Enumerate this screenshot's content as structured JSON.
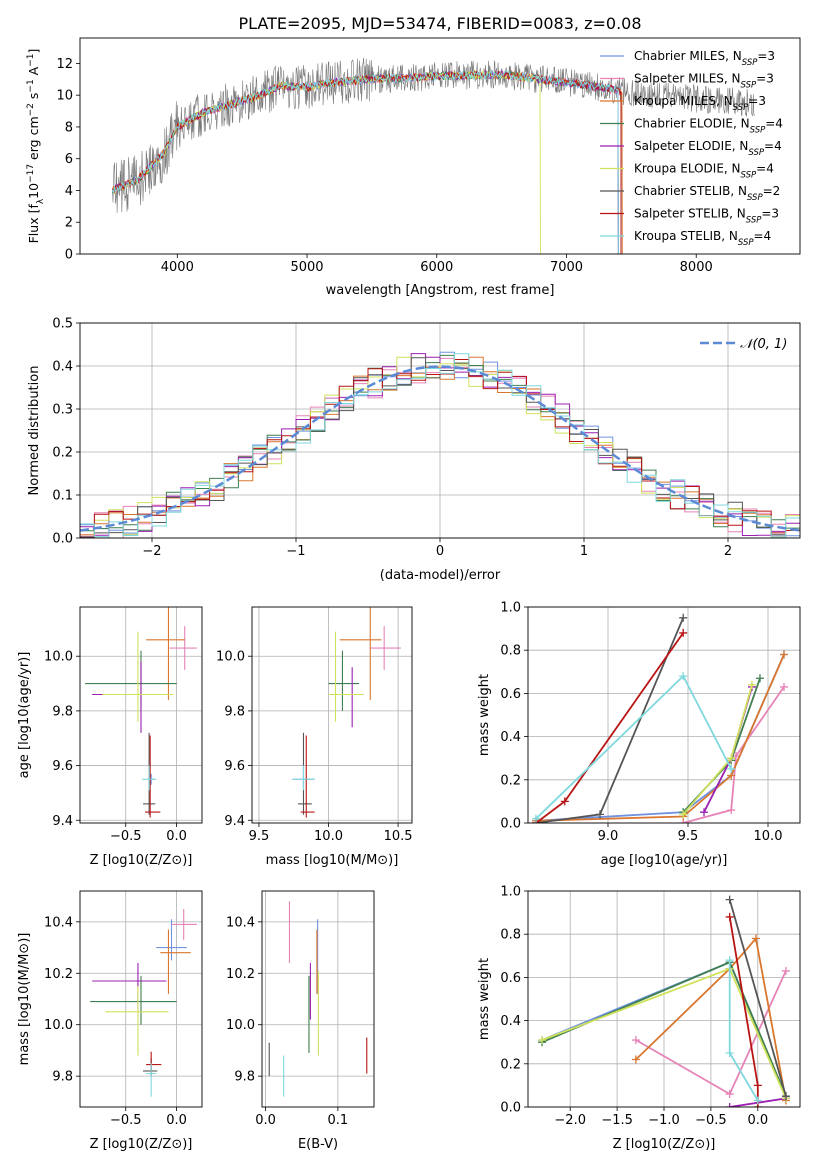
{
  "figure": {
    "title": "PLATE=2095, MJD=53474, FIBERID=0083, z=0.08"
  },
  "colors": {
    "Chabrier MILES": "#6f93e0",
    "Salpeter MILES": "#e683b7",
    "Kroupa MILES": "#d9772e",
    "Chabrier ELODIE": "#3f7f4f",
    "Salpeter ELODIE": "#9b1fb0",
    "Kroupa ELODIE": "#d0e25c",
    "Chabrier STELIB": "#555555",
    "Salpeter STELIB": "#b81414",
    "Kroupa STELIB": "#7fd8dd",
    "gaussian": "#5b8bd6"
  },
  "chart_data": [
    {
      "id": "spectrum",
      "type": "line",
      "xlabel": "wavelength [Angstrom, rest frame]",
      "ylabel": "Flux [f_λ 10^-17 erg cm^-2 s^-1 A^-1]",
      "xlim": [
        3250,
        8800
      ],
      "ylim": [
        0,
        13.6
      ],
      "xticks": [
        4000,
        5000,
        6000,
        7000,
        8000
      ],
      "yticks": [
        0,
        2,
        4,
        6,
        8,
        10,
        12
      ],
      "legend_position": "right",
      "legend": [
        {
          "name": "Chabrier MILES",
          "nssp": "3"
        },
        {
          "name": "Salpeter MILES",
          "nssp": "3"
        },
        {
          "name": "Kroupa MILES",
          "nssp": "3"
        },
        {
          "name": "Chabrier ELODIE",
          "nssp": "4"
        },
        {
          "name": "Salpeter ELODIE",
          "nssp": "4"
        },
        {
          "name": "Kroupa ELODIE",
          "nssp": "4"
        },
        {
          "name": "Chabrier STELIB",
          "nssp": "2"
        },
        {
          "name": "Salpeter STELIB",
          "nssp": "3"
        },
        {
          "name": "Kroupa STELIB",
          "nssp": "4"
        }
      ],
      "continuum": {
        "x": [
          3500,
          3700,
          3900,
          4000,
          4200,
          4400,
          4600,
          4800,
          5000,
          5200,
          5500,
          6000,
          6500,
          7000,
          7500,
          8000,
          8300,
          8500
        ],
        "y": [
          4.0,
          4.7,
          6.4,
          8.0,
          8.9,
          9.4,
          9.9,
          10.6,
          10.5,
          10.8,
          11.0,
          11.2,
          11.3,
          10.8,
          10.2,
          9.8,
          9.6,
          9.4
        ]
      },
      "data_range": [
        3500,
        8450
      ],
      "models_range": [
        3500,
        7400
      ]
    },
    {
      "id": "residuals",
      "type": "histogram",
      "xlabel": "(data-model)/error",
      "ylabel": "Normed distribution",
      "xlim": [
        -2.5,
        2.5
      ],
      "ylim": [
        0,
        0.5
      ],
      "xticks": [
        -2,
        -1,
        0,
        1,
        2
      ],
      "yticks": [
        0.0,
        0.1,
        0.2,
        0.3,
        0.4,
        0.5
      ],
      "legend_label": "𝒩(0, 1)",
      "legend_position": "top-right",
      "bin_width": 0.1,
      "bin_start": -2.5,
      "gaussian": {
        "mean": 0,
        "sigma": 1
      }
    },
    {
      "id": "age_vs_Z",
      "type": "errorbar",
      "xlabel": "Z [log10(Z/Z⊙)]",
      "ylabel": "age [log10(age/yr)]",
      "xlim": [
        -0.95,
        0.25
      ],
      "ylim": [
        9.39,
        10.18
      ],
      "xticks": [
        -0.5,
        0.0
      ],
      "yticks": [
        9.4,
        9.6,
        9.8,
        10.0
      ],
      "points": [
        {
          "model": "Chabrier MILES",
          "x": -0.25,
          "y": 9.55,
          "xerr": [
            0.03,
            0.03
          ],
          "yerr": [
            0.02,
            0.02
          ]
        },
        {
          "model": "Salpeter MILES",
          "x": 0.08,
          "y": 10.03,
          "xerr": [
            0.15,
            0.12
          ],
          "yerr": [
            0.08,
            0.08
          ]
        },
        {
          "model": "Kroupa MILES",
          "x": -0.08,
          "y": 10.06,
          "xerr": [
            0.22,
            0.16
          ],
          "yerr": [
            0.22,
            0.12
          ]
        },
        {
          "model": "Chabrier ELODIE",
          "x": -0.35,
          "y": 9.9,
          "xerr": [
            0.55,
            0.35
          ],
          "yerr": [
            0.1,
            0.12
          ]
        },
        {
          "model": "Salpeter ELODIE",
          "x": -0.35,
          "y": 9.86,
          "xerr": [
            0.48,
            0.3
          ],
          "yerr": [
            0.14,
            0.12
          ]
        },
        {
          "model": "Kroupa ELODIE",
          "x": -0.38,
          "y": 9.86,
          "xerr": [
            0.35,
            0.35
          ],
          "yerr": [
            0.1,
            0.23
          ]
        },
        {
          "model": "Chabrier STELIB",
          "x": -0.27,
          "y": 9.46,
          "xerr": [
            0.06,
            0.06
          ],
          "yerr": [
            0.04,
            0.26
          ]
        },
        {
          "model": "Salpeter STELIB",
          "x": -0.26,
          "y": 9.43,
          "xerr": [
            0.05,
            0.1
          ],
          "yerr": [
            0.02,
            0.28
          ]
        },
        {
          "model": "Kroupa STELIB",
          "x": -0.27,
          "y": 9.55,
          "xerr": [
            0.07,
            0.07
          ],
          "yerr": [
            0.04,
            0.05
          ]
        }
      ]
    },
    {
      "id": "age_vs_mass",
      "type": "errorbar",
      "xlabel": "mass [log10(M/M⊙)]",
      "ylabel": "",
      "xlim": [
        9.45,
        10.6
      ],
      "ylim": [
        9.39,
        10.18
      ],
      "xticks": [
        9.5,
        10.0,
        10.5
      ],
      "yticks": [
        9.4,
        9.6,
        9.8,
        10.0
      ],
      "points": [
        {
          "model": "Chabrier MILES",
          "x": 9.82,
          "y": 9.55,
          "xerr": [
            0.08,
            0.08
          ],
          "yerr": [
            0.02,
            0.02
          ]
        },
        {
          "model": "Salpeter MILES",
          "x": 10.4,
          "y": 10.03,
          "xerr": [
            0.1,
            0.12
          ],
          "yerr": [
            0.08,
            0.08
          ]
        },
        {
          "model": "Kroupa MILES",
          "x": 10.3,
          "y": 10.06,
          "xerr": [
            0.22,
            0.08
          ],
          "yerr": [
            0.22,
            0.12
          ]
        },
        {
          "model": "Chabrier ELODIE",
          "x": 10.1,
          "y": 9.9,
          "xerr": [
            0.1,
            0.12
          ],
          "yerr": [
            0.1,
            0.12
          ]
        },
        {
          "model": "Salpeter ELODIE",
          "x": 10.17,
          "y": 9.86,
          "xerr": [
            0.08,
            0.08
          ],
          "yerr": [
            0.12,
            0.1
          ]
        },
        {
          "model": "Kroupa ELODIE",
          "x": 10.05,
          "y": 9.86,
          "xerr": [
            0.05,
            0.2
          ],
          "yerr": [
            0.1,
            0.23
          ]
        },
        {
          "model": "Chabrier STELIB",
          "x": 9.82,
          "y": 9.46,
          "xerr": [
            0.04,
            0.06
          ],
          "yerr": [
            0.04,
            0.26
          ]
        },
        {
          "model": "Salpeter STELIB",
          "x": 9.84,
          "y": 9.43,
          "xerr": [
            0.04,
            0.06
          ],
          "yerr": [
            0.02,
            0.28
          ]
        },
        {
          "model": "Kroupa STELIB",
          "x": 9.82,
          "y": 9.55,
          "xerr": [
            0.08,
            0.08
          ],
          "yerr": [
            0.04,
            0.05
          ]
        }
      ]
    },
    {
      "id": "weight_vs_age",
      "type": "line",
      "xlabel": "age [log10(age/yr)]",
      "ylabel": "mass weight",
      "xlim": [
        8.5,
        10.2
      ],
      "ylim": [
        0,
        1.0
      ],
      "xticks": [
        9.0,
        9.5,
        10.0
      ],
      "yticks": [
        0.0,
        0.2,
        0.4,
        0.6,
        0.8,
        1.0
      ],
      "series": [
        {
          "model": "Chabrier MILES",
          "x": [
            8.55,
            9.47,
            9.77,
            10.1
          ],
          "y": [
            0.01,
            0.05,
            0.22,
            0.78
          ]
        },
        {
          "model": "Salpeter MILES",
          "x": [
            9.47,
            9.77,
            9.8,
            10.1
          ],
          "y": [
            0.0,
            0.06,
            0.31,
            0.63
          ]
        },
        {
          "model": "Kroupa MILES",
          "x": [
            8.55,
            9.47,
            9.77,
            10.1
          ],
          "y": [
            0.01,
            0.03,
            0.22,
            0.78
          ]
        },
        {
          "model": "Chabrier ELODIE",
          "x": [
            9.47,
            9.77,
            9.95
          ],
          "y": [
            0.05,
            0.29,
            0.67
          ]
        },
        {
          "model": "Salpeter ELODIE",
          "x": [
            9.6,
            9.77,
            9.9
          ],
          "y": [
            0.05,
            0.3,
            0.63
          ]
        },
        {
          "model": "Kroupa ELODIE",
          "x": [
            9.47,
            9.77,
            9.9
          ],
          "y": [
            0.04,
            0.3,
            0.64
          ]
        },
        {
          "model": "Chabrier STELIB",
          "x": [
            8.55,
            8.95,
            9.47
          ],
          "y": [
            0.0,
            0.04,
            0.95
          ]
        },
        {
          "model": "Salpeter STELIB",
          "x": [
            8.55,
            8.73,
            9.47
          ],
          "y": [
            0.0,
            0.1,
            0.88
          ]
        },
        {
          "model": "Kroupa STELIB",
          "x": [
            8.55,
            9.47,
            9.77
          ],
          "y": [
            0.02,
            0.68,
            0.25
          ]
        }
      ]
    },
    {
      "id": "mass_vs_Z",
      "type": "errorbar",
      "xlabel": "Z [log10(Z/Z⊙)]",
      "ylabel": "mass [log10(M/M⊙)]",
      "xlim": [
        -0.95,
        0.25
      ],
      "ylim": [
        9.68,
        10.52
      ],
      "xticks": [
        -0.5,
        0.0
      ],
      "yticks": [
        9.8,
        10.0,
        10.2,
        10.4
      ],
      "points": [
        {
          "model": "Chabrier MILES",
          "x": -0.05,
          "y": 10.3,
          "xerr": [
            0.15,
            0.15
          ],
          "yerr": [
            0.05,
            0.11
          ]
        },
        {
          "model": "Salpeter MILES",
          "x": 0.07,
          "y": 10.39,
          "xerr": [
            0.12,
            0.13
          ],
          "yerr": [
            0.06,
            0.06
          ]
        },
        {
          "model": "Kroupa MILES",
          "x": -0.08,
          "y": 10.28,
          "xerr": [
            0.08,
            0.22
          ],
          "yerr": [
            0.16,
            0.09
          ]
        },
        {
          "model": "Chabrier ELODIE",
          "x": -0.35,
          "y": 10.09,
          "xerr": [
            0.5,
            0.35
          ],
          "yerr": [
            0.09,
            0.1
          ]
        },
        {
          "model": "Salpeter ELODIE",
          "x": -0.38,
          "y": 10.17,
          "xerr": [
            0.45,
            0.28
          ],
          "yerr": [
            0.11,
            0.07
          ]
        },
        {
          "model": "Kroupa ELODIE",
          "x": -0.38,
          "y": 10.05,
          "xerr": [
            0.32,
            0.3
          ],
          "yerr": [
            0.17,
            0.1
          ]
        },
        {
          "model": "Chabrier STELIB",
          "x": -0.25,
          "y": 9.82,
          "xerr": [
            0.08,
            0.06
          ],
          "yerr": [
            0.02,
            0.05
          ]
        },
        {
          "model": "Salpeter STELIB",
          "x": -0.25,
          "y": 9.845,
          "xerr": [
            0.05,
            0.1
          ],
          "yerr": [
            0.03,
            0.05
          ]
        },
        {
          "model": "Kroupa STELIB",
          "x": -0.25,
          "y": 9.81,
          "xerr": [
            0.05,
            0.05
          ],
          "yerr": [
            0.09,
            0.04
          ]
        }
      ]
    },
    {
      "id": "mass_vs_ebv",
      "type": "errorbar",
      "xlabel": "E(B-V)",
      "ylabel": "",
      "xlim": [
        -0.005,
        0.15
      ],
      "ylim": [
        9.68,
        10.52
      ],
      "xticks": [
        0.0,
        0.1
      ],
      "yticks": [
        9.8,
        10.0,
        10.2,
        10.4
      ],
      "points": [
        {
          "model": "Chabrier MILES",
          "x": 0.072,
          "y": 10.3,
          "xerr": [
            0.0,
            0.0
          ],
          "yerr": [
            0.18,
            0.11
          ]
        },
        {
          "model": "Salpeter MILES",
          "x": 0.033,
          "y": 10.36,
          "xerr": [
            0.0,
            0.0
          ],
          "yerr": [
            0.12,
            0.12
          ]
        },
        {
          "model": "Kroupa MILES",
          "x": 0.071,
          "y": 10.28,
          "xerr": [
            0.0,
            0.0
          ],
          "yerr": [
            0.16,
            0.09
          ]
        },
        {
          "model": "Chabrier ELODIE",
          "x": 0.06,
          "y": 10.05,
          "xerr": [
            0.0,
            0.0
          ],
          "yerr": [
            0.16,
            0.14
          ]
        },
        {
          "model": "Salpeter ELODIE",
          "x": 0.062,
          "y": 10.11,
          "xerr": [
            0.0,
            0.0
          ],
          "yerr": [
            0.09,
            0.13
          ]
        },
        {
          "model": "Kroupa ELODIE",
          "x": 0.073,
          "y": 10.05,
          "xerr": [
            0.0,
            0.0
          ],
          "yerr": [
            0.17,
            0.16
          ]
        },
        {
          "model": "Chabrier STELIB",
          "x": 0.005,
          "y": 9.86,
          "xerr": [
            0.0,
            0.0
          ],
          "yerr": [
            0.06,
            0.07
          ]
        },
        {
          "model": "Salpeter STELIB",
          "x": 0.14,
          "y": 9.88,
          "xerr": [
            0.0,
            0.0
          ],
          "yerr": [
            0.07,
            0.07
          ]
        },
        {
          "model": "Kroupa STELIB",
          "x": 0.025,
          "y": 9.81,
          "xerr": [
            0.0,
            0.0
          ],
          "yerr": [
            0.09,
            0.07
          ]
        }
      ]
    },
    {
      "id": "weight_vs_Z",
      "type": "line",
      "xlabel": "Z [log10(Z/Z⊙)]",
      "ylabel": "mass weight",
      "xlim": [
        -2.45,
        0.45
      ],
      "ylim": [
        0,
        1.0
      ],
      "xticks": [
        -2.0,
        -1.5,
        -1.0,
        -0.5,
        0.0
      ],
      "yticks": [
        0.0,
        0.2,
        0.4,
        0.6,
        0.8,
        1.0
      ],
      "series": [
        {
          "model": "Chabrier MILES",
          "x": [
            -2.3,
            -0.3,
            0.3
          ],
          "y": [
            0.31,
            0.67,
            0.04
          ]
        },
        {
          "model": "Salpeter MILES",
          "x": [
            -1.3,
            -0.3,
            0.3
          ],
          "y": [
            0.31,
            0.06,
            0.63
          ]
        },
        {
          "model": "Kroupa MILES",
          "x": [
            -1.3,
            -0.3,
            -0.02,
            0.3
          ],
          "y": [
            0.22,
            0.64,
            0.78,
            0.03
          ]
        },
        {
          "model": "Chabrier ELODIE",
          "x": [
            -2.3,
            -0.3,
            0.3
          ],
          "y": [
            0.3,
            0.67,
            0.05
          ]
        },
        {
          "model": "Salpeter ELODIE",
          "x": [
            -0.3,
            0.3
          ],
          "y": [
            0.0,
            0.04
          ]
        },
        {
          "model": "Kroupa ELODIE",
          "x": [
            -2.3,
            -0.3,
            0.3
          ],
          "y": [
            0.31,
            0.64,
            0.04
          ]
        },
        {
          "model": "Chabrier STELIB",
          "x": [
            -0.3,
            0.3
          ],
          "y": [
            0.96,
            0.05
          ]
        },
        {
          "model": "Salpeter STELIB",
          "x": [
            -0.3,
            0.0,
            0.0
          ],
          "y": [
            0.88,
            0.1,
            0.0
          ]
        },
        {
          "model": "Kroupa STELIB",
          "x": [
            -0.3,
            -0.3,
            0.0
          ],
          "y": [
            0.68,
            0.25,
            0.03
          ]
        }
      ]
    }
  ]
}
